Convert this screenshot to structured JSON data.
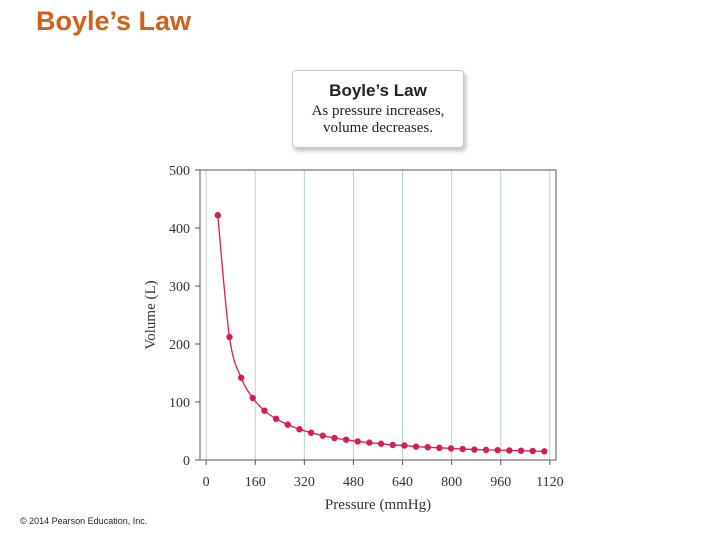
{
  "slide": {
    "title": "Boyle’s Law",
    "copyright": "© 2014 Pearson Education, Inc."
  },
  "callout": {
    "title": "Boyle’s Law",
    "line1": "As pressure increases,",
    "line2": "volume decreases."
  },
  "colors": {
    "title": "#d0601a",
    "series": "#d81e4a",
    "grid": "#b9cfe6"
  },
  "chart_data": {
    "type": "scatter",
    "xlabel": "Pressure (mmHg)",
    "ylabel": "Volume (L)",
    "xlim": [
      -20,
      1140
    ],
    "ylim": [
      0,
      500
    ],
    "x_ticks": [
      0,
      160,
      320,
      480,
      640,
      800,
      960,
      1120
    ],
    "y_ticks": [
      0,
      100,
      200,
      300,
      400,
      500
    ],
    "grid": true,
    "series": [
      {
        "x": [
          38,
          76,
          114,
          152,
          190,
          228,
          266,
          304,
          342,
          380,
          418,
          456,
          494,
          532,
          570,
          608,
          646,
          684,
          722,
          760,
          798,
          836,
          874,
          912,
          950,
          988,
          1026,
          1064,
          1102
        ],
        "y": [
          422,
          212,
          142,
          107,
          85,
          71,
          61,
          53,
          47,
          42,
          38,
          35,
          32,
          30,
          28,
          26,
          25,
          23,
          22,
          21,
          20,
          19,
          18,
          17.5,
          17,
          16.5,
          16,
          15.5,
          15
        ]
      }
    ]
  }
}
